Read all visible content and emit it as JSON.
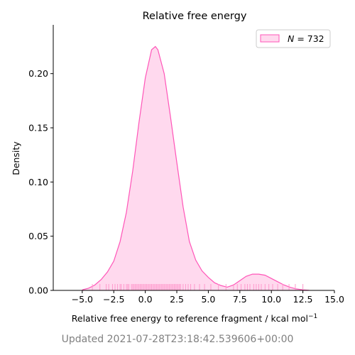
{
  "chart_data": {
    "type": "area",
    "title": "Relative free energy",
    "xlabel": "Relative free energy to reference fragment / kcal mol",
    "xlabel_superscript": "−1",
    "ylabel": "Density",
    "xlim": [
      -7.3,
      15.0
    ],
    "ylim": [
      0,
      0.245
    ],
    "xticks": [
      -5.0,
      -2.5,
      0.0,
      2.5,
      5.0,
      7.5,
      10.0,
      12.5,
      15.0
    ],
    "xtick_labels": [
      "−5.0",
      "−2.5",
      "0.0",
      "2.5",
      "5.0",
      "7.5",
      "10.0",
      "12.5",
      "15.0"
    ],
    "yticks": [
      0.0,
      0.05,
      0.1,
      0.15,
      0.2
    ],
    "ytick_labels": [
      "0.00",
      "0.05",
      "0.10",
      "0.15",
      "0.20"
    ],
    "grid": false,
    "legend": {
      "placement": "top-right",
      "entries": [
        {
          "label_italic": "N",
          "label_rest": " = 732"
        }
      ]
    },
    "colors": {
      "line": "#ff55b8",
      "fill": "#ffd9ee",
      "rug": "#ff99cc"
    },
    "series": [
      {
        "x": [
          -5.0,
          -4.5,
          -4.0,
          -3.5,
          -3.0,
          -2.5,
          -2.0,
          -1.5,
          -1.0,
          -0.5,
          0.0,
          0.5,
          0.8,
          1.0,
          1.5,
          2.0,
          2.5,
          3.0,
          3.5,
          4.0,
          4.5,
          5.0,
          5.5,
          6.0,
          6.5,
          7.0,
          7.5,
          8.0,
          8.5,
          9.0,
          9.5,
          10.0,
          10.5,
          11.0,
          11.5,
          12.0,
          12.5,
          13.0
        ],
        "y": [
          0.0005,
          0.002,
          0.005,
          0.01,
          0.017,
          0.027,
          0.045,
          0.072,
          0.11,
          0.155,
          0.196,
          0.222,
          0.225,
          0.222,
          0.2,
          0.16,
          0.118,
          0.077,
          0.045,
          0.028,
          0.018,
          0.012,
          0.007,
          0.0045,
          0.003,
          0.005,
          0.009,
          0.013,
          0.015,
          0.015,
          0.014,
          0.011,
          0.008,
          0.005,
          0.0028,
          0.0013,
          0.0005,
          0.0001
        ]
      }
    ],
    "rug": [
      -4.2,
      -3.6,
      -3.1,
      -2.9,
      -2.6,
      -2.4,
      -2.2,
      -2.0,
      -1.9,
      -1.7,
      -1.5,
      -1.4,
      -1.3,
      -1.1,
      -1.0,
      -0.9,
      -0.8,
      -0.7,
      -0.6,
      -0.5,
      -0.4,
      -0.3,
      -0.2,
      -0.1,
      0.0,
      0.1,
      0.2,
      0.3,
      0.4,
      0.5,
      0.6,
      0.7,
      0.8,
      0.9,
      1.0,
      1.1,
      1.2,
      1.3,
      1.4,
      1.5,
      1.6,
      1.7,
      1.8,
      1.9,
      2.0,
      2.1,
      2.2,
      2.3,
      2.4,
      2.5,
      2.6,
      2.7,
      2.8,
      3.0,
      3.2,
      3.4,
      3.6,
      3.9,
      4.3,
      4.7,
      5.2,
      5.8,
      6.4,
      7.0,
      7.3,
      7.6,
      7.9,
      8.1,
      8.3,
      8.6,
      8.8,
      9.0,
      9.2,
      9.5,
      9.8,
      10.1,
      10.5,
      10.9,
      11.4,
      11.9,
      12.5
    ]
  },
  "footer": "Updated 2021-07-28T23:18:42.539606+00:00"
}
